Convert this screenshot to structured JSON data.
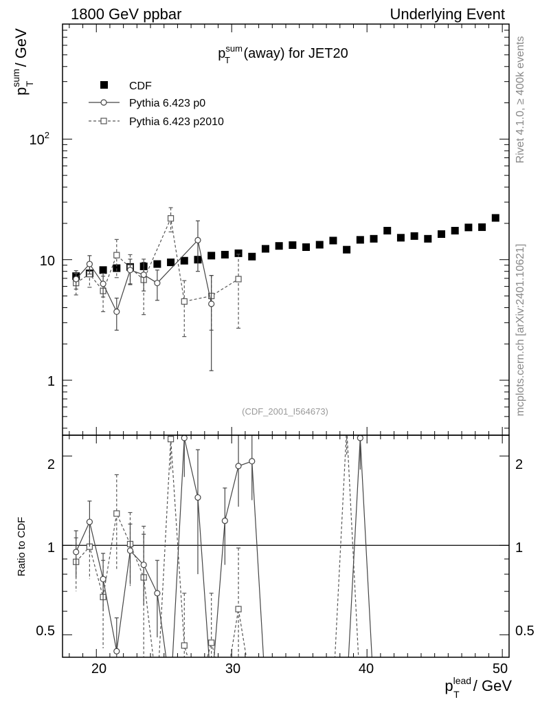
{
  "header": {
    "left": "1800 GeV ppbar",
    "right": "Underlying Event"
  },
  "side_text": {
    "rivet": "Rivet 4.1.0, ≥ 400k events",
    "mcplots": "mcplots.cern.ch [arXiv:2401.10621]"
  },
  "colors": {
    "cdf": "#000000",
    "p0": "#444444",
    "p2010": "#555555",
    "ref_text": "#999999",
    "side_text": "#888888"
  },
  "chart_data": [
    {
      "type": "scatter",
      "panel": "main",
      "title_base": "p",
      "title_sub": "T",
      "title_sup": "sum",
      "title_rest": " (away) for JET20",
      "ylabel_base": "p",
      "ylabel_sub": "T",
      "ylabel_sup": "sum",
      "ylabel_rest": " / GeV",
      "yscale": "log",
      "xlim": [
        17.5,
        50.5
      ],
      "ylim": [
        0.35,
        900
      ],
      "y_ticks": [
        1,
        10,
        100
      ],
      "y_tick_labels": [
        "1",
        "10",
        "10",
        "2"
      ],
      "reference_label": "(CDF_2001_I564673)",
      "legend_position": "top-left",
      "series": [
        {
          "name": "CDF",
          "marker": "filled-square",
          "x": [
            18.5,
            19.5,
            20.5,
            21.5,
            22.5,
            23.5,
            24.5,
            25.5,
            26.5,
            27.5,
            28.5,
            29.5,
            30.5,
            31.5,
            32.5,
            33.5,
            34.5,
            35.5,
            36.5,
            37.5,
            38.5,
            39.5,
            40.5,
            41.5,
            42.5,
            43.5,
            44.5,
            45.5,
            46.5,
            47.5,
            48.5,
            49.5
          ],
          "y": [
            7.3,
            7.7,
            8.2,
            8.5,
            8.7,
            8.8,
            9.2,
            9.5,
            9.8,
            10.0,
            10.8,
            11.0,
            11.3,
            10.6,
            12.3,
            13.0,
            13.2,
            12.7,
            13.3,
            14.4,
            12.1,
            14.6,
            14.9,
            17.4,
            15.2,
            15.7,
            14.9,
            16.3,
            17.4,
            18.5,
            18.6,
            22.2
          ]
        },
        {
          "name": "Pythia 6.423 p0",
          "marker": "open-circle",
          "line": "solid",
          "x": [
            18.5,
            19.5,
            20.5,
            21.5,
            22.5,
            23.5,
            24.5,
            27.5,
            28.5
          ],
          "y": [
            6.9,
            9.2,
            6.3,
            3.7,
            8.2,
            7.5,
            6.4,
            14.5,
            4.3
          ],
          "yerr_low": [
            1.2,
            1.6,
            1.4,
            1.1,
            1.9,
            2.0,
            1.8,
            6.5,
            3.1
          ],
          "yerr_high": [
            1.2,
            1.6,
            1.4,
            1.1,
            1.9,
            2.0,
            1.8,
            6.5,
            3.1
          ]
        },
        {
          "name": "Pythia 6.423 p2010",
          "marker": "open-square",
          "line": "dashed",
          "x": [
            18.5,
            19.5,
            20.5,
            21.5,
            22.5,
            23.5,
            25.5,
            26.5,
            28.5,
            30.5
          ],
          "y": [
            6.4,
            7.6,
            5.5,
            10.9,
            8.6,
            6.8,
            22.0,
            4.5,
            5.0,
            6.9
          ],
          "yerr_low": [
            1.3,
            1.7,
            1.8,
            3.8,
            2.4,
            3.3,
            5.0,
            2.2,
            2.4,
            4.2
          ],
          "yerr_high": [
            1.3,
            1.7,
            1.8,
            3.8,
            2.4,
            3.3,
            5.0,
            2.2,
            2.4,
            4.2
          ]
        }
      ]
    },
    {
      "type": "line",
      "panel": "ratio",
      "ylabel": "Ratio to CDF",
      "xlabel_base": "p",
      "xlabel_sub": "T",
      "xlabel_sup": "lead",
      "xlabel_rest": " / GeV",
      "yscale": "log",
      "xlim": [
        17.5,
        50.5
      ],
      "ylim": [
        0.42,
        2.35
      ],
      "x_ticks": [
        20,
        30,
        40,
        50
      ],
      "x_tick_labels": [
        "20",
        "30",
        "40",
        "50"
      ],
      "y_ticks": [
        0.5,
        1,
        2
      ],
      "y_tick_labels": [
        "0.5",
        "1",
        "2"
      ],
      "reference_line": 1,
      "series": [
        {
          "name": "Pythia 6.423 p0",
          "marker": "open-circle",
          "line": "solid",
          "points": [
            [
              18.5,
              0.95,
              0.17,
              true
            ],
            [
              19.5,
              1.2,
              0.21,
              true
            ],
            [
              20.5,
              0.77,
              0.17,
              true
            ],
            [
              21.5,
              0.44,
              0.13,
              true
            ],
            [
              22.5,
              0.96,
              0.22,
              true
            ],
            [
              23.5,
              0.86,
              0.23,
              true
            ],
            [
              24.5,
              0.69,
              0.2,
              true
            ],
            [
              25.5,
              0.001,
              0,
              false
            ],
            [
              26.5,
              2.3,
              0.6,
              true
            ],
            [
              27.5,
              1.45,
              0.65,
              true
            ],
            [
              28.5,
              0.001,
              0,
              false
            ],
            [
              29.5,
              1.21,
              0.35,
              true
            ],
            [
              30.5,
              1.85,
              0.5,
              true
            ],
            [
              31.5,
              1.92,
              0.5,
              true
            ],
            [
              32.5,
              0.001,
              0,
              false
            ],
            [
              38.5,
              0.001,
              0,
              false
            ],
            [
              39.5,
              2.3,
              0.5,
              true
            ],
            [
              40.5,
              0.001,
              0,
              false
            ]
          ]
        },
        {
          "name": "Pythia 6.423 p2010",
          "marker": "open-square",
          "line": "dashed",
          "points": [
            [
              18.5,
              0.88,
              0.18,
              true
            ],
            [
              19.5,
              0.99,
              0.22,
              true
            ],
            [
              20.5,
              0.67,
              0.22,
              true
            ],
            [
              21.5,
              1.28,
              0.45,
              true
            ],
            [
              22.5,
              1.01,
              0.28,
              true
            ],
            [
              23.5,
              0.78,
              0.38,
              true
            ],
            [
              24.5,
              0.001,
              0,
              false
            ],
            [
              25.5,
              2.28,
              0.5,
              true
            ],
            [
              26.5,
              0.46,
              0.23,
              true
            ],
            [
              27.5,
              0.001,
              0,
              false
            ],
            [
              28.5,
              0.47,
              0.22,
              true
            ],
            [
              29.5,
              0.001,
              0,
              false
            ],
            [
              30.5,
              0.61,
              0.37,
              true
            ],
            [
              31.5,
              0.001,
              0,
              false
            ],
            [
              37.5,
              0.001,
              0,
              false
            ],
            [
              38.5,
              2.5,
              0.5,
              false
            ],
            [
              39.5,
              0.001,
              0,
              false
            ]
          ]
        }
      ]
    }
  ]
}
